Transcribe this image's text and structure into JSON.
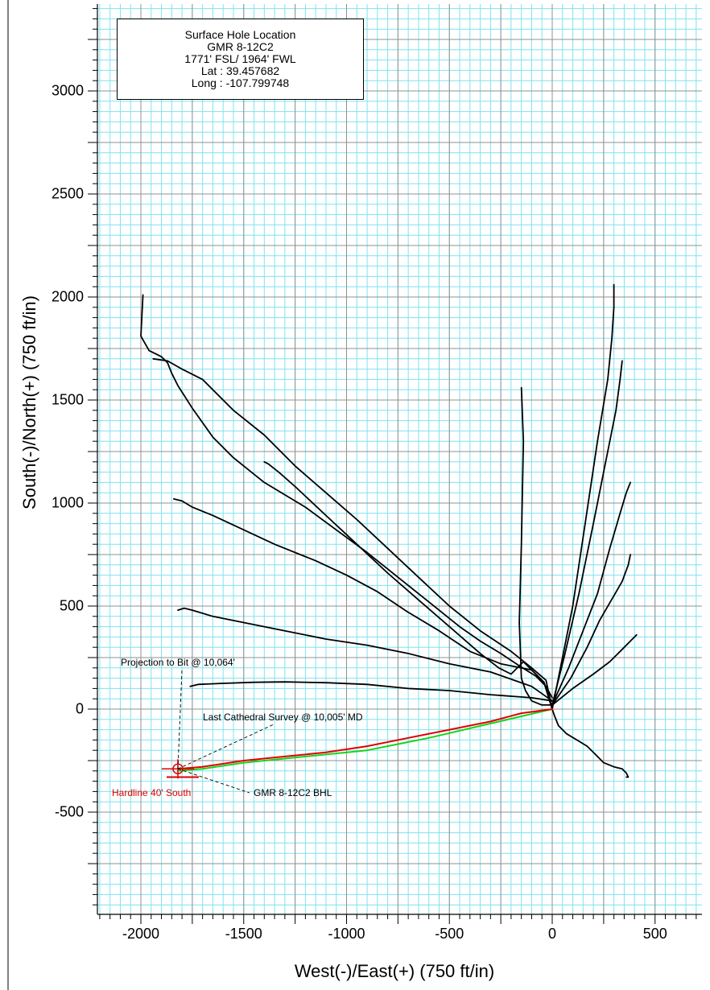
{
  "chart_data": {
    "type": "line",
    "title": "",
    "xlabel": "West(-)/East(+) (750 ft/in)",
    "ylabel": "South(-)/North(+) (750 ft/in)",
    "xlim": [
      -2200,
      720
    ],
    "ylim": [
      -990,
      3460
    ],
    "x_ticks": [
      -2000,
      -1500,
      -1000,
      -500,
      0,
      500
    ],
    "y_ticks": [
      3000,
      2500,
      2000,
      1500,
      1000,
      500,
      0,
      -500
    ],
    "grid": true,
    "colors": {
      "grid_minor": "#7fe3ee",
      "grid_major": "#909090",
      "well": "#000000",
      "plan": "#19d219",
      "actual": "#e00000"
    },
    "infobox": {
      "lines": [
        "Surface Hole Location",
        "GMR 8-12C2",
        "1771' FSL/ 1964' FWL",
        "Lat : 39.457682",
        "Long : -107.799748"
      ]
    },
    "annotations": {
      "projection": "Projection to Bit @ 10,064'",
      "last_survey": "Last Cathedral Survey @ 10,005' MD",
      "bhl": "GMR 8-12C2 BHL",
      "hardline": "Hardline 40' South"
    },
    "series": [
      {
        "color": "#000000",
        "points": [
          [
            0,
            55
          ],
          [
            -30,
            110
          ],
          [
            -80,
            160
          ],
          [
            -160,
            210
          ],
          [
            -250,
            270
          ],
          [
            -350,
            330
          ],
          [
            -450,
            400
          ],
          [
            -550,
            480
          ],
          [
            -650,
            560
          ],
          [
            -750,
            640
          ],
          [
            -900,
            760
          ],
          [
            -1050,
            870
          ],
          [
            -1200,
            980
          ],
          [
            -1400,
            1100
          ],
          [
            -1550,
            1220
          ],
          [
            -1650,
            1320
          ],
          [
            -1750,
            1460
          ],
          [
            -1820,
            1570
          ],
          [
            -1850,
            1630
          ],
          [
            -1870,
            1680
          ],
          [
            -1900,
            1710
          ],
          [
            -1960,
            1740
          ],
          [
            -2000,
            1810
          ],
          [
            -1990,
            2010
          ]
        ]
      },
      {
        "color": "#000000",
        "points": [
          [
            0,
            0
          ],
          [
            -30,
            140
          ],
          [
            -100,
            200
          ],
          [
            -200,
            280
          ],
          [
            -350,
            380
          ],
          [
            -500,
            500
          ],
          [
            -650,
            640
          ],
          [
            -800,
            780
          ],
          [
            -950,
            920
          ],
          [
            -1100,
            1050
          ],
          [
            -1250,
            1180
          ],
          [
            -1400,
            1330
          ],
          [
            -1550,
            1450
          ],
          [
            -1700,
            1600
          ],
          [
            -1800,
            1650
          ],
          [
            -1870,
            1690
          ],
          [
            -1940,
            1700
          ]
        ]
      },
      {
        "color": "#000000",
        "points": [
          [
            0,
            0
          ],
          [
            -40,
            130
          ],
          [
            -90,
            180
          ],
          [
            -140,
            230
          ],
          [
            -200,
            170
          ],
          [
            -260,
            200
          ],
          [
            -350,
            270
          ],
          [
            -500,
            400
          ],
          [
            -650,
            530
          ],
          [
            -800,
            660
          ],
          [
            -950,
            800
          ],
          [
            -1100,
            940
          ],
          [
            -1250,
            1080
          ],
          [
            -1330,
            1150
          ],
          [
            -1380,
            1190
          ],
          [
            -1400,
            1200
          ]
        ]
      },
      {
        "color": "#000000",
        "points": [
          [
            0,
            0
          ],
          [
            -40,
            130
          ],
          [
            -100,
            190
          ],
          [
            -250,
            220
          ],
          [
            -400,
            280
          ],
          [
            -550,
            380
          ],
          [
            -700,
            470
          ],
          [
            -850,
            570
          ],
          [
            -1000,
            650
          ],
          [
            -1150,
            720
          ],
          [
            -1350,
            800
          ],
          [
            -1500,
            870
          ],
          [
            -1650,
            940
          ],
          [
            -1750,
            980
          ],
          [
            -1800,
            1010
          ],
          [
            -1840,
            1020
          ]
        ]
      },
      {
        "color": "#000000",
        "points": [
          [
            0,
            40
          ],
          [
            -100,
            110
          ],
          [
            -300,
            180
          ],
          [
            -500,
            220
          ],
          [
            -700,
            270
          ],
          [
            -900,
            310
          ],
          [
            -1100,
            340
          ],
          [
            -1300,
            380
          ],
          [
            -1500,
            420
          ],
          [
            -1650,
            450
          ],
          [
            -1750,
            480
          ],
          [
            -1790,
            490
          ],
          [
            -1820,
            480
          ]
        ]
      },
      {
        "color": "#000000",
        "points": [
          [
            0,
            40
          ],
          [
            -100,
            55
          ],
          [
            -300,
            70
          ],
          [
            -500,
            90
          ],
          [
            -700,
            100
          ],
          [
            -900,
            120
          ],
          [
            -1100,
            128
          ],
          [
            -1300,
            132
          ],
          [
            -1450,
            130
          ],
          [
            -1600,
            125
          ],
          [
            -1720,
            120
          ],
          [
            -1760,
            110
          ]
        ]
      },
      {
        "color": "#000000",
        "points": [
          [
            0,
            20
          ],
          [
            -50,
            20
          ],
          [
            -100,
            40
          ],
          [
            -130,
            90
          ],
          [
            -150,
            150
          ],
          [
            -160,
            420
          ],
          [
            -150,
            800
          ],
          [
            -140,
            1300
          ],
          [
            -150,
            1560
          ]
        ]
      },
      {
        "color": "#000000",
        "points": [
          [
            0,
            0
          ],
          [
            40,
            200
          ],
          [
            100,
            500
          ],
          [
            160,
            900
          ],
          [
            220,
            1300
          ],
          [
            270,
            1600
          ],
          [
            290,
            1800
          ],
          [
            300,
            1950
          ],
          [
            300,
            2060
          ]
        ]
      },
      {
        "color": "#000000",
        "points": [
          [
            0,
            20
          ],
          [
            60,
            260
          ],
          [
            130,
            560
          ],
          [
            200,
            900
          ],
          [
            260,
            1200
          ],
          [
            310,
            1450
          ],
          [
            330,
            1600
          ],
          [
            340,
            1690
          ]
        ]
      },
      {
        "color": "#000000",
        "points": [
          [
            0,
            20
          ],
          [
            80,
            200
          ],
          [
            150,
            380
          ],
          [
            220,
            560
          ],
          [
            280,
            780
          ],
          [
            330,
            950
          ],
          [
            360,
            1050
          ],
          [
            380,
            1100
          ]
        ]
      },
      {
        "color": "#000000",
        "points": [
          [
            0,
            20
          ],
          [
            90,
            150
          ],
          [
            170,
            300
          ],
          [
            230,
            430
          ],
          [
            300,
            550
          ],
          [
            340,
            620
          ],
          [
            370,
            700
          ],
          [
            380,
            750
          ]
        ]
      },
      {
        "color": "#000000",
        "points": [
          [
            0,
            20
          ],
          [
            100,
            100
          ],
          [
            200,
            170
          ],
          [
            280,
            230
          ],
          [
            340,
            290
          ],
          [
            380,
            330
          ],
          [
            410,
            360
          ],
          [
            390,
            340
          ]
        ]
      },
      {
        "color": "#000000",
        "points": [
          [
            0,
            0
          ],
          [
            10,
            -30
          ],
          [
            30,
            -80
          ],
          [
            70,
            -120
          ],
          [
            120,
            -150
          ],
          [
            170,
            -180
          ],
          [
            210,
            -220
          ],
          [
            250,
            -260
          ],
          [
            300,
            -280
          ],
          [
            340,
            -290
          ],
          [
            360,
            -310
          ],
          [
            370,
            -330
          ],
          [
            360,
            -330
          ]
        ]
      },
      {
        "name": "",
        "color": "#19d219",
        "points": [
          [
            0,
            0
          ],
          [
            -300,
            -70
          ],
          [
            -600,
            -140
          ],
          [
            -900,
            -200
          ],
          [
            -1200,
            -230
          ],
          [
            -1500,
            -260
          ],
          [
            -1700,
            -290
          ],
          [
            -1820,
            -300
          ]
        ]
      },
      {
        "name": "",
        "color": "#e00000",
        "points": [
          [
            0,
            0
          ],
          [
            -150,
            -20
          ],
          [
            -300,
            -60
          ],
          [
            -500,
            -100
          ],
          [
            -700,
            -140
          ],
          [
            -900,
            -180
          ],
          [
            -1100,
            -210
          ],
          [
            -1300,
            -230
          ],
          [
            -1500,
            -250
          ],
          [
            -1700,
            -280
          ],
          [
            -1820,
            -290
          ]
        ]
      }
    ],
    "markers": {
      "target_center": [
        -1820,
        -290
      ],
      "hardline_y": -330
    }
  }
}
